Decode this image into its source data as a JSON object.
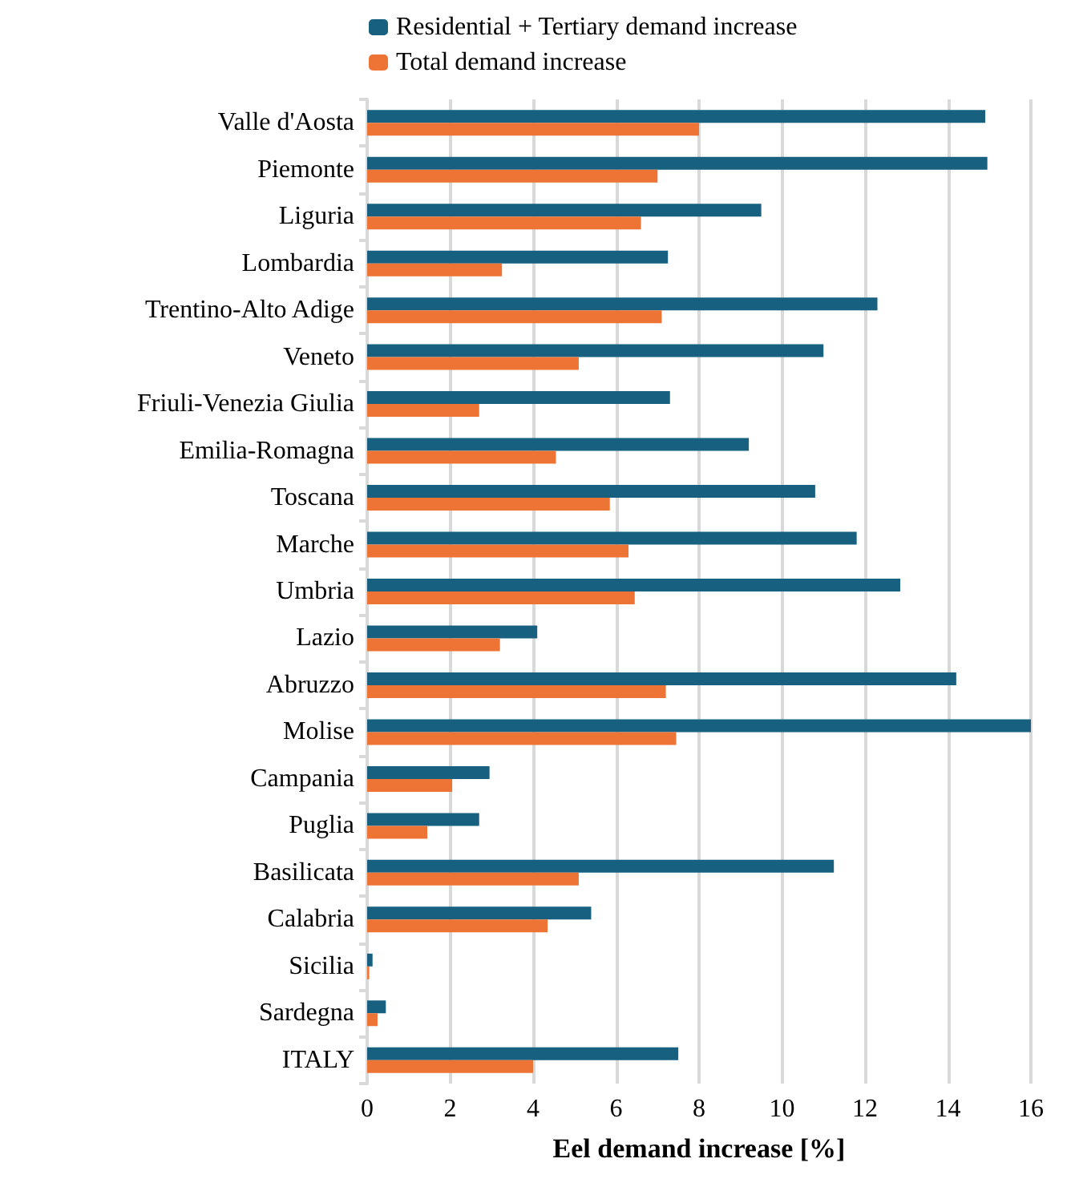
{
  "chart_data": {
    "type": "bar",
    "orientation": "horizontal",
    "xlabel": "Eel demand increase [%]",
    "categories": [
      "Valle d'Aosta",
      "Piemonte",
      "Liguria",
      "Lombardia",
      "Trentino-Alto Adige",
      "Veneto",
      "Friuli-Venezia Giulia",
      "Emilia-Romagna",
      "Toscana",
      "Marche",
      "Umbria",
      "Lazio",
      "Abruzzo",
      "Molise",
      "Campania",
      "Puglia",
      "Basilicata",
      "Calabria",
      "Sicilia",
      "Sardegna",
      "ITALY"
    ],
    "series": [
      {
        "name": "Residential + Tertiary demand increase",
        "color": "#17607f",
        "values": [
          14.9,
          14.95,
          9.5,
          7.25,
          12.3,
          11.0,
          7.3,
          9.2,
          10.8,
          11.8,
          12.85,
          4.1,
          14.2,
          16.0,
          2.95,
          2.7,
          11.25,
          5.4,
          0.13,
          0.45,
          7.5
        ]
      },
      {
        "name": "Total demand increase",
        "color": "#ed7434",
        "values": [
          8.0,
          7.0,
          6.6,
          3.25,
          7.1,
          5.1,
          2.7,
          4.55,
          5.85,
          6.3,
          6.45,
          3.2,
          7.2,
          7.45,
          2.05,
          1.45,
          5.1,
          4.35,
          0.05,
          0.25,
          4.0
        ]
      }
    ],
    "xlim": [
      0,
      16
    ],
    "xticks": [
      0,
      2,
      4,
      6,
      8,
      10,
      12,
      14,
      16
    ],
    "grid": "x",
    "legend": "top"
  }
}
